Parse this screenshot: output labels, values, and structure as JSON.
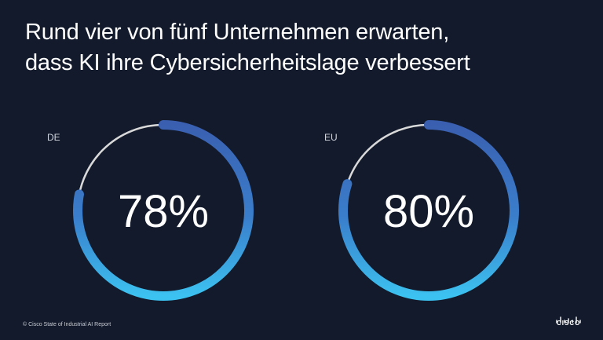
{
  "title": {
    "line1": "Rund vier von fünf Unternehmen erwarten,",
    "line2": "dass KI ihre Cybersicherheitslage verbessert"
  },
  "chart_data": [
    {
      "type": "pie",
      "variant": "donut",
      "label": "DE",
      "value": 78,
      "display": "78%",
      "max": 100
    },
    {
      "type": "pie",
      "variant": "donut",
      "label": "EU",
      "value": 80,
      "display": "80%",
      "max": 100
    }
  ],
  "colors": {
    "background": "#121a2b",
    "arc_start": "#3a62b2",
    "arc_end": "#3cc2f0",
    "remainder": "#d9d9d9"
  },
  "footer": {
    "source": "© Cisco State of Industrial AI Report"
  },
  "logo": {
    "text": "CISCO"
  }
}
